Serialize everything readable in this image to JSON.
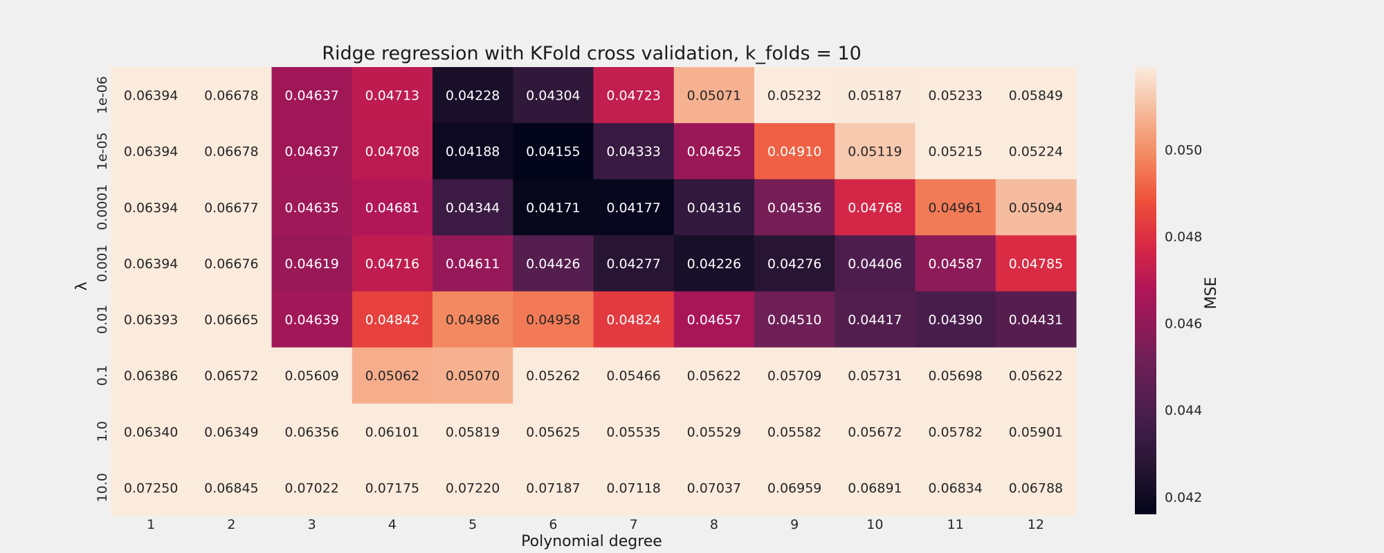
{
  "chart_data": {
    "type": "heatmap",
    "title": "Ridge regression with KFold cross validation, k_folds = 10",
    "xlabel": "Polynomial degree",
    "ylabel": "λ",
    "x_categories": [
      "1",
      "2",
      "3",
      "4",
      "5",
      "6",
      "7",
      "8",
      "9",
      "10",
      "11",
      "12"
    ],
    "y_categories": [
      "1e-06",
      "1e-05",
      "0.0001",
      "0.001",
      "0.01",
      "0.1",
      "1.0",
      "10.0"
    ],
    "values": [
      [
        0.06394,
        0.06678,
        0.04637,
        0.04713,
        0.04228,
        0.04304,
        0.04723,
        0.05071,
        0.05232,
        0.05187,
        0.05233,
        0.05849
      ],
      [
        0.06394,
        0.06678,
        0.04637,
        0.04708,
        0.04188,
        0.04155,
        0.04333,
        0.04625,
        0.0491,
        0.05119,
        0.05215,
        0.05224
      ],
      [
        0.06394,
        0.06677,
        0.04635,
        0.04681,
        0.04344,
        0.04171,
        0.04177,
        0.04316,
        0.04536,
        0.04768,
        0.04961,
        0.05094
      ],
      [
        0.06394,
        0.06676,
        0.04619,
        0.04716,
        0.04611,
        0.04426,
        0.04277,
        0.04226,
        0.04276,
        0.04406,
        0.04587,
        0.04785
      ],
      [
        0.06393,
        0.06665,
        0.04639,
        0.04842,
        0.04986,
        0.04958,
        0.04824,
        0.04657,
        0.0451,
        0.04417,
        0.0439,
        0.04431
      ],
      [
        0.06386,
        0.06572,
        0.05609,
        0.05062,
        0.0507,
        0.05262,
        0.05466,
        0.05622,
        0.05709,
        0.05731,
        0.05698,
        0.05622
      ],
      [
        0.0634,
        0.06349,
        0.06356,
        0.06101,
        0.05819,
        0.05625,
        0.05535,
        0.05529,
        0.05582,
        0.05672,
        0.05782,
        0.05901
      ],
      [
        0.0725,
        0.06845,
        0.07022,
        0.07175,
        0.0722,
        0.07187,
        0.07118,
        0.07037,
        0.06959,
        0.06891,
        0.06834,
        0.06788
      ]
    ],
    "colorbar": {
      "label": "MSE",
      "range": [
        0.0416,
        0.0519
      ],
      "ticks": [
        "0.042",
        "0.044",
        "0.046",
        "0.048",
        "0.050"
      ],
      "colormap": "rocket"
    },
    "legend": "colorbar-right",
    "grid": false
  }
}
